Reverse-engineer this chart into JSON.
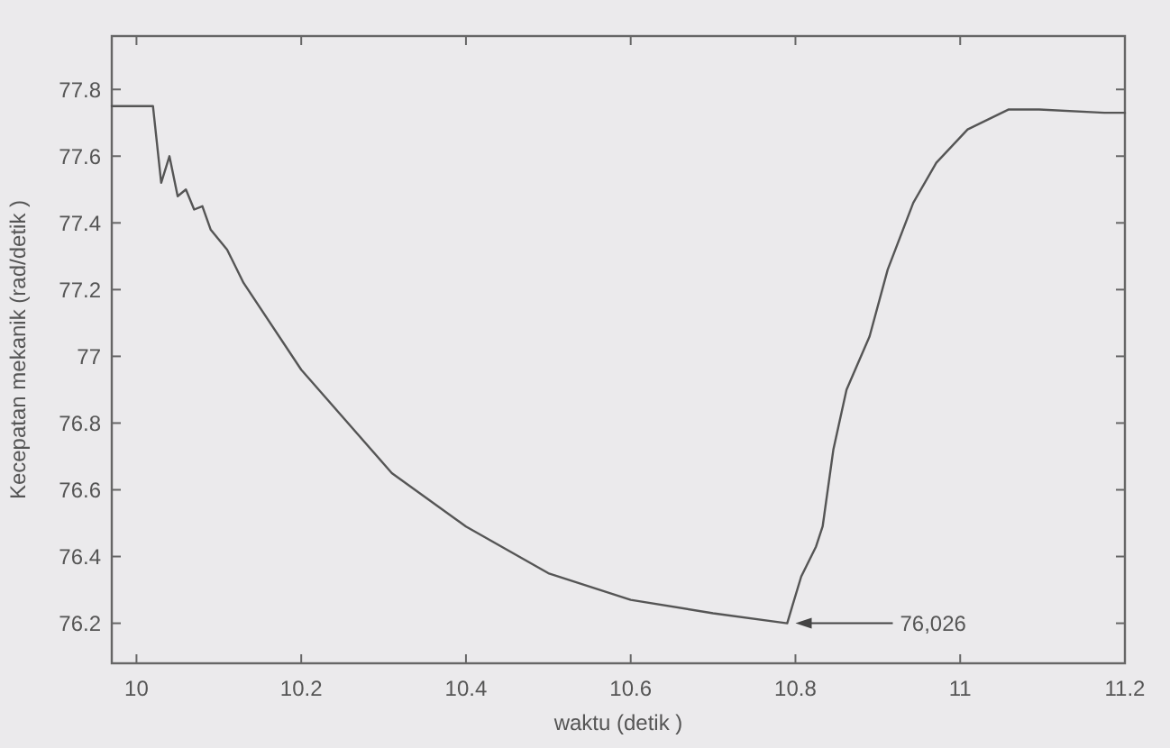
{
  "chart_data": {
    "type": "line",
    "xlabel": "waktu (detik )",
    "ylabel": "Kecepatan mekanik (rad/detik )",
    "xlim": [
      9.97,
      11.2
    ],
    "ylim": [
      76.08,
      77.96
    ],
    "xticks": [
      10,
      10.2,
      10.4,
      10.6,
      10.8,
      11,
      11.2
    ],
    "yticks": [
      76.2,
      76.4,
      76.6,
      76.8,
      77,
      77.2,
      77.4,
      77.6,
      77.8
    ],
    "grid": false,
    "marker": "none",
    "line_style": "solid",
    "annotations": [
      {
        "text": "76,026",
        "x": 10.8,
        "y": 76.2
      }
    ],
    "series": [
      {
        "color": "#555555",
        "x": [
          9.97,
          10.02,
          10.03,
          10.04,
          10.05,
          10.06,
          10.07,
          10.08,
          10.09,
          10.11,
          10.13,
          10.2,
          10.31,
          10.4,
          10.5,
          10.6,
          10.7,
          10.79,
          10.796,
          10.807,
          10.825,
          10.833,
          10.846,
          10.862,
          10.89,
          10.912,
          10.943,
          10.971,
          11.009,
          11.059,
          11.096,
          11.175,
          11.2
        ],
        "values": [
          77.75,
          77.75,
          77.52,
          77.6,
          77.48,
          77.5,
          77.44,
          77.45,
          77.38,
          77.32,
          77.22,
          76.96,
          76.65,
          76.49,
          76.35,
          76.27,
          76.23,
          76.2,
          76.25,
          76.34,
          76.43,
          76.49,
          76.72,
          76.9,
          77.06,
          77.26,
          77.46,
          77.58,
          77.68,
          77.74,
          77.74,
          77.73,
          77.73
        ]
      }
    ]
  }
}
